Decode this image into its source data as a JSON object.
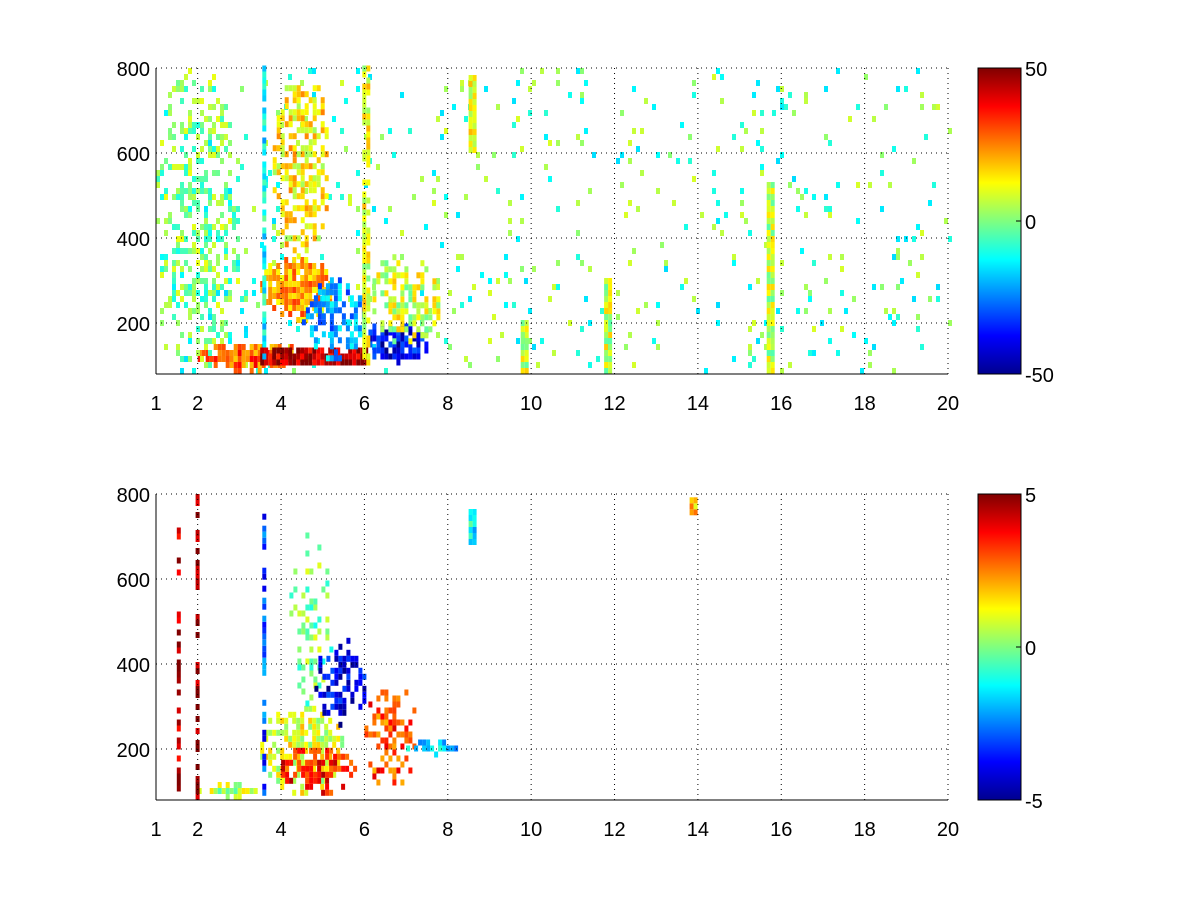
{
  "chart_data": [
    {
      "type": "heatmap",
      "title": "",
      "xlabel": "",
      "ylabel": "",
      "xlim": [
        1,
        20
      ],
      "ylim": [
        80,
        800
      ],
      "x_ticks": [
        1,
        2,
        4,
        6,
        8,
        10,
        12,
        14,
        16,
        18,
        20
      ],
      "y_ticks": [
        200,
        400,
        600,
        800
      ],
      "grid": true,
      "colormap": "jet",
      "color_range": [
        -50,
        50
      ],
      "colorbar_ticks": [
        50,
        0,
        -50
      ],
      "sparse_density": 0.1,
      "features": [
        {
          "kind": "blob",
          "x": [
            3.5,
            5.2
          ],
          "y": [
            200,
            350
          ],
          "value": 22,
          "density": 0.85
        },
        {
          "kind": "blob",
          "x": [
            3.8,
            5.1
          ],
          "y": [
            350,
            780
          ],
          "value": 14,
          "density": 0.55
        },
        {
          "kind": "blob",
          "x": [
            2.0,
            4.5
          ],
          "y": [
            80,
            150
          ],
          "value": 28,
          "density": 0.9
        },
        {
          "kind": "band",
          "x": [
            3.5,
            6.0
          ],
          "y": [
            100,
            140
          ],
          "value": 45,
          "density": 0.95
        },
        {
          "kind": "blob",
          "x": [
            4.5,
            6.0
          ],
          "y": [
            110,
            300
          ],
          "value": -22,
          "density": 0.6
        },
        {
          "kind": "blob",
          "x": [
            6.0,
            7.5
          ],
          "y": [
            100,
            200
          ],
          "value": -38,
          "density": 0.75
        },
        {
          "kind": "blob",
          "x": [
            6.0,
            7.8
          ],
          "y": [
            150,
            350
          ],
          "value": 8,
          "density": 0.55
        },
        {
          "kind": "blob",
          "x": [
            1.0,
            3.0
          ],
          "y": [
            80,
            800
          ],
          "value": 0,
          "density": 0.35
        },
        {
          "kind": "stripe",
          "x": [
            9.75,
            9.9
          ],
          "y": [
            80,
            200
          ],
          "value": 7,
          "density": 1
        },
        {
          "kind": "stripe",
          "x": [
            11.75,
            11.9
          ],
          "y": [
            80,
            300
          ],
          "value": 7,
          "density": 1
        },
        {
          "kind": "stripe",
          "x": [
            15.65,
            15.8
          ],
          "y": [
            80,
            530
          ],
          "value": 6,
          "density": 1
        },
        {
          "kind": "stripe",
          "x": [
            8.5,
            8.6
          ],
          "y": [
            600,
            780
          ],
          "value": 12,
          "density": 1
        },
        {
          "kind": "stripe",
          "x": [
            3.55,
            3.6
          ],
          "y": [
            100,
            800
          ],
          "value": -12,
          "density": 0.8
        },
        {
          "kind": "stripe",
          "x": [
            5.95,
            6.05
          ],
          "y": [
            100,
            800
          ],
          "value": 10,
          "density": 0.7
        }
      ]
    },
    {
      "type": "heatmap",
      "title": "",
      "xlabel": "",
      "ylabel": "",
      "xlim": [
        1,
        20
      ],
      "ylim": [
        80,
        800
      ],
      "x_ticks": [
        1,
        2,
        4,
        6,
        8,
        10,
        12,
        14,
        16,
        18,
        20
      ],
      "y_ticks": [
        200,
        400,
        600,
        800
      ],
      "grid": true,
      "colormap": "jet",
      "color_range": [
        -5,
        5
      ],
      "colorbar_ticks": [
        5,
        0,
        -5
      ],
      "sparse_density": 0,
      "features": [
        {
          "kind": "blob",
          "x": [
            3.5,
            5.5
          ],
          "y": [
            90,
            300
          ],
          "value": 1,
          "density": 0.6
        },
        {
          "kind": "blob",
          "x": [
            4.2,
            5.2
          ],
          "y": [
            300,
            700
          ],
          "value": 0,
          "density": 0.3
        },
        {
          "kind": "blob",
          "x": [
            4.8,
            6.0
          ],
          "y": [
            250,
            450
          ],
          "value": -4,
          "density": 0.45
        },
        {
          "kind": "blob",
          "x": [
            4.0,
            5.8
          ],
          "y": [
            90,
            200
          ],
          "value": 3.5,
          "density": 0.55
        },
        {
          "kind": "blob",
          "x": [
            6.0,
            7.2
          ],
          "y": [
            100,
            350
          ],
          "value": 3,
          "density": 0.45
        },
        {
          "kind": "blob",
          "x": [
            7.0,
            8.2
          ],
          "y": [
            180,
            210
          ],
          "value": -1.8,
          "density": 0.8
        },
        {
          "kind": "blob",
          "x": [
            2.0,
            3.5
          ],
          "y": [
            80,
            110
          ],
          "value": 0.5,
          "density": 0.7
        },
        {
          "kind": "stripe",
          "x": [
            1.5,
            1.55
          ],
          "y": [
            100,
            720
          ],
          "value": 4.5,
          "density": 0.6
        },
        {
          "kind": "stripe",
          "x": [
            1.95,
            2.0
          ],
          "y": [
            80,
            790
          ],
          "value": 5,
          "density": 0.6
        },
        {
          "kind": "stripe",
          "x": [
            3.55,
            3.6
          ],
          "y": [
            90,
            780
          ],
          "value": -3,
          "density": 0.6
        },
        {
          "kind": "stripe",
          "x": [
            8.5,
            8.6
          ],
          "y": [
            680,
            760
          ],
          "value": -1.2,
          "density": 1
        },
        {
          "kind": "stripe",
          "x": [
            13.8,
            13.9
          ],
          "y": [
            750,
            790
          ],
          "value": 1.8,
          "density": 1
        }
      ]
    }
  ]
}
